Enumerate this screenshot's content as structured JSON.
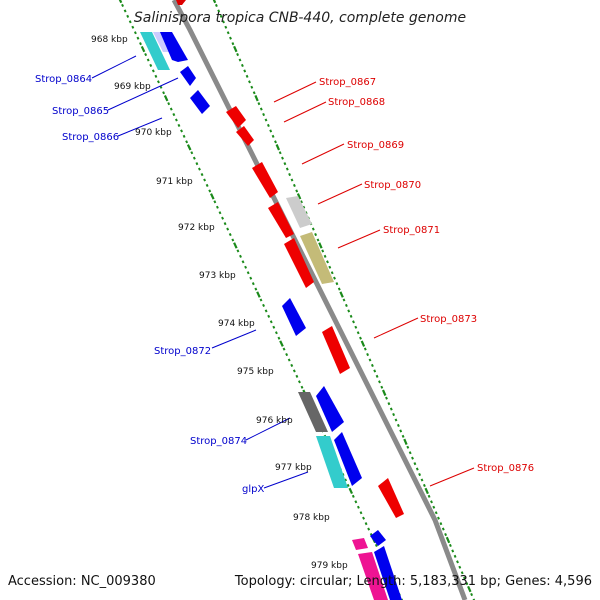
{
  "title": "Salinispora tropica CNB-440, complete genome",
  "footer": {
    "accession": "Accession: NC_009380",
    "summary": "Topology: circular; Length: 5,183,331 bp; Genes: 4,596"
  },
  "colors": {
    "forward_label": "#dd0000",
    "reverse_label": "#0000cc",
    "backbone": "#8a8a8a",
    "ticks": "#1a8a1a"
  },
  "kbp_labels": [
    "968 kbp",
    "969 kbp",
    "970 kbp",
    "971 kbp",
    "972 kbp",
    "973 kbp",
    "974 kbp",
    "975 kbp",
    "976 kbp",
    "977 kbp",
    "978 kbp",
    "979 kbp"
  ],
  "reverse_gene_labels": [
    "Strop_0864",
    "Strop_0865",
    "Strop_0866",
    "Strop_0872",
    "Strop_0874",
    "glpX"
  ],
  "forward_gene_labels": [
    "Strop_0867",
    "Strop_0868",
    "Strop_0869",
    "Strop_0870",
    "Strop_0871",
    "Strop_0873",
    "Strop_0876"
  ]
}
